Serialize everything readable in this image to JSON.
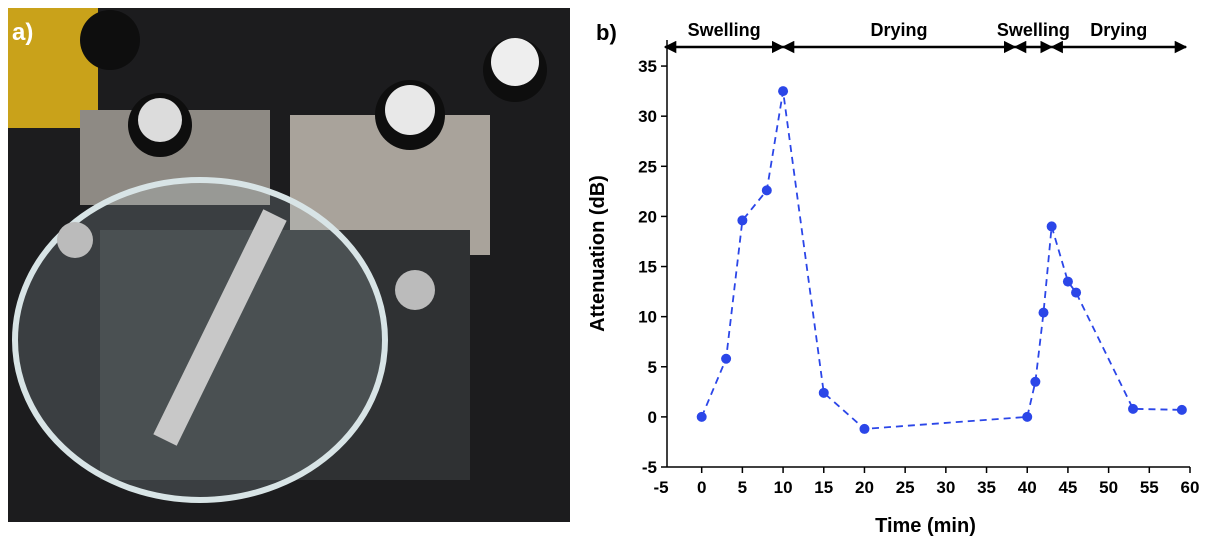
{
  "photo": {
    "label": "a)"
  },
  "chart_data": {
    "type": "scatter-line",
    "panel_label": "b)",
    "x_label": "Time (min)",
    "y_label": "Attenuation (dB)",
    "x": [
      0,
      3,
      5,
      8,
      10,
      15,
      20,
      40,
      41,
      42,
      43,
      45,
      46,
      53,
      59
    ],
    "values": [
      0,
      5.8,
      19.6,
      22.6,
      32.5,
      2.4,
      -1.2,
      0,
      3.5,
      10.4,
      19,
      13.5,
      12.4,
      0.8,
      0.7
    ],
    "color": "#2b46e8",
    "line_style": "dashed",
    "xlim": [
      -5,
      60
    ],
    "xticks": [
      -5,
      0,
      5,
      10,
      15,
      20,
      25,
      30,
      35,
      40,
      45,
      50,
      55,
      60
    ],
    "ylim": [
      -5,
      37.6
    ],
    "yticks": [
      -5,
      0,
      5,
      10,
      15,
      20,
      25,
      30,
      35
    ],
    "annotations": [
      {
        "text": "Swelling",
        "from": -4.5,
        "to": 10
      },
      {
        "text": "Drying",
        "from": 10,
        "to": 38.5
      },
      {
        "text": "Swelling",
        "from": 38.5,
        "to": 43
      },
      {
        "text": "Drying",
        "from": 43,
        "to": 59.5
      }
    ]
  }
}
